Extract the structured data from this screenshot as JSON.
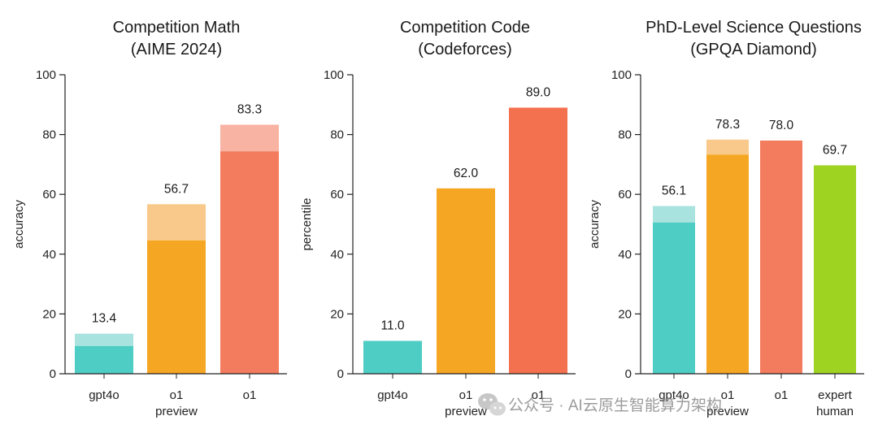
{
  "watermark": "公众号 · AI云原生智能算力架构",
  "watermark_icon": "wechat-icon",
  "chart_data": [
    {
      "type": "bar",
      "title": [
        "Competition Math",
        "(AIME 2024)"
      ],
      "ylabel": "accuracy",
      "ylim": [
        0,
        100
      ],
      "yticks": [
        0,
        20,
        40,
        60,
        80,
        100
      ],
      "categories": [
        [
          "gpt4o"
        ],
        [
          "o1",
          "preview"
        ],
        [
          "o1"
        ]
      ],
      "values": [
        13.4,
        56.7,
        83.3
      ],
      "solid_values": [
        9.3,
        44.6,
        74.4
      ],
      "value_labels": [
        "13.4",
        "56.7",
        "83.3"
      ],
      "colors": [
        "#4ecdc4",
        "#f5a623",
        "#f47c5e"
      ],
      "light_colors": [
        "#a8e3df",
        "#f8c98a",
        "#f8b3a2"
      ],
      "grid": false
    },
    {
      "type": "bar",
      "title": [
        "Competition Code",
        "(Codeforces)"
      ],
      "ylabel": "percentile",
      "ylim": [
        0,
        100
      ],
      "yticks": [
        0,
        20,
        40,
        60,
        80,
        100
      ],
      "categories": [
        [
          "gpt4o"
        ],
        [
          "o1",
          "preview"
        ],
        [
          "o1"
        ]
      ],
      "values": [
        11.0,
        62.0,
        89.0
      ],
      "solid_values": [
        11.0,
        62.0,
        89.0
      ],
      "value_labels": [
        "11.0",
        "62.0",
        "89.0"
      ],
      "colors": [
        "#4ecdc4",
        "#f5a623",
        "#f4714f"
      ],
      "light_colors": [
        "#4ecdc4",
        "#f5a623",
        "#f4714f"
      ],
      "grid": false
    },
    {
      "type": "bar",
      "title": [
        "PhD-Level Science Questions",
        "(GPQA Diamond)"
      ],
      "ylabel": "accuracy",
      "ylim": [
        0,
        100
      ],
      "yticks": [
        0,
        20,
        40,
        60,
        80,
        100
      ],
      "categories": [
        [
          "gpt4o"
        ],
        [
          "o1",
          "preview"
        ],
        [
          "o1"
        ],
        [
          "expert",
          "human"
        ]
      ],
      "values": [
        56.1,
        78.3,
        78.0,
        69.7
      ],
      "solid_values": [
        50.6,
        73.3,
        78.0,
        69.7
      ],
      "value_labels": [
        "56.1",
        "78.3",
        "78.0",
        "69.7"
      ],
      "colors": [
        "#4ecdc4",
        "#f5a623",
        "#f47c5e",
        "#9ed321"
      ],
      "light_colors": [
        "#a8e3df",
        "#f8c98a",
        "#f47c5e",
        "#9ed321"
      ],
      "grid": false
    }
  ]
}
